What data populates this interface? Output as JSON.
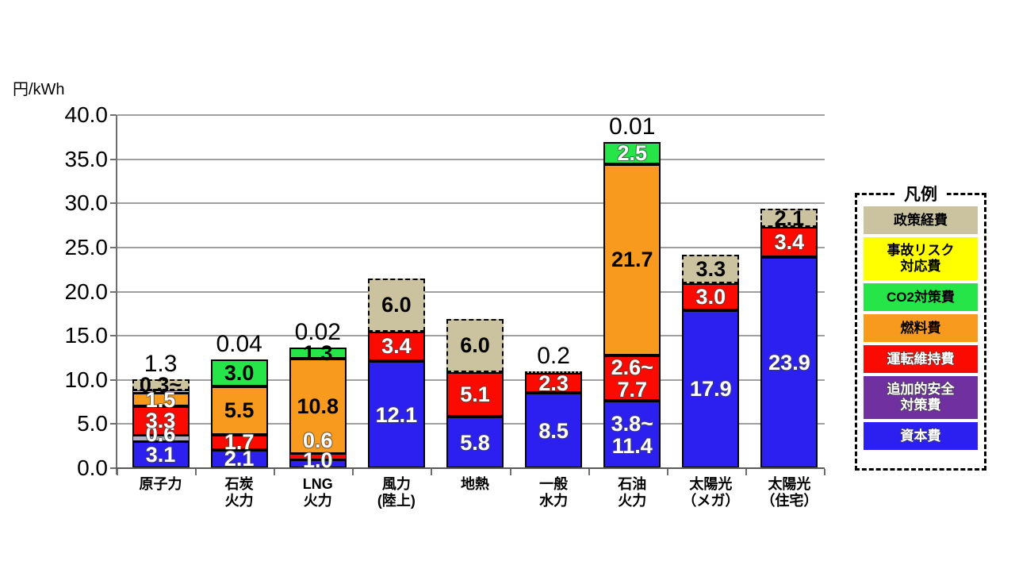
{
  "chart_data": {
    "type": "bar",
    "stacked": true,
    "unit_label": "円/kWh",
    "ylim": [
      0,
      40
    ],
    "y_ticks": [
      "40.0",
      "35.0",
      "30.0",
      "25.0",
      "20.0",
      "15.0",
      "10.0",
      "5.0",
      "0.0"
    ],
    "grid": true,
    "colors": {
      "capital": "#2B20F0",
      "safety": "#7030A0",
      "safety_light": "#B5B2C4",
      "om": "#FA0A00",
      "fuel": "#F79A1E",
      "co2": "#25E549",
      "accident": "#FFFF00",
      "policy": "#CBC29F"
    },
    "categories": [
      "原子力",
      "石炭火力",
      "LNG火力",
      "風力(陸上)",
      "地熱",
      "一般水力",
      "石油火力",
      "太陽光（メガ）",
      "太陽光（住宅）"
    ],
    "bars": [
      {
        "category_lines": [
          "原子力"
        ],
        "above_label": "1.3",
        "segments": [
          {
            "name": "資本費",
            "color": "capital",
            "value": 3.1,
            "label": "3.1",
            "text": "white"
          },
          {
            "name": "追加的安全対策費",
            "color": "safety_light",
            "value": 0.6,
            "label": "0.6",
            "text": "white",
            "ldy": -5
          },
          {
            "name": "運転維持費",
            "color": "om",
            "value": 3.3,
            "label": "3.3",
            "text": "white"
          },
          {
            "name": "燃料費",
            "color": "fuel",
            "value": 1.5,
            "label": "1.5",
            "text": "white"
          },
          {
            "name": "事故リスク対応費",
            "color": "accident",
            "value": 0.3,
            "label": "",
            "text": "black"
          },
          {
            "name": "政策経費",
            "color": "policy",
            "value": 1.3,
            "label": "0.3~",
            "text": "black",
            "dashed": true
          }
        ]
      },
      {
        "category_lines": [
          "石炭",
          "火力"
        ],
        "above_label": "0.04",
        "segments": [
          {
            "name": "資本費",
            "color": "capital",
            "value": 2.1,
            "label": "2.1",
            "text": "white"
          },
          {
            "name": "運転維持費",
            "color": "om",
            "value": 1.7,
            "label": "1.7",
            "text": "white"
          },
          {
            "name": "燃料費",
            "color": "fuel",
            "value": 5.5,
            "label": "5.5",
            "text": "black"
          },
          {
            "name": "CO2対策費",
            "color": "co2",
            "value": 3.0,
            "label": "3.0",
            "text": "black"
          }
        ]
      },
      {
        "category_lines": [
          "LNG",
          "火力"
        ],
        "above_label": "0.02",
        "segments": [
          {
            "name": "資本費",
            "color": "capital",
            "value": 1.0,
            "label": "1.0",
            "text": "white",
            "ldy": -4
          },
          {
            "name": "運転維持費",
            "color": "om",
            "value": 0.6,
            "label": "0.6",
            "text": "white",
            "ldy": -21
          },
          {
            "name": "燃料費",
            "color": "fuel",
            "value": 10.8,
            "label": "10.8",
            "text": "black"
          },
          {
            "name": "CO2対策費",
            "color": "co2",
            "value": 1.3,
            "label": "1.3",
            "text": "black"
          }
        ]
      },
      {
        "category_lines": [
          "風力",
          "(陸上)"
        ],
        "above_label": "",
        "segments": [
          {
            "name": "資本費",
            "color": "capital",
            "value": 12.1,
            "label": "12.1",
            "text": "white"
          },
          {
            "name": "運転維持費",
            "color": "om",
            "value": 3.4,
            "label": "3.4",
            "text": "white"
          },
          {
            "name": "政策経費",
            "color": "policy",
            "value": 6.0,
            "label": "6.0",
            "text": "black",
            "dashed": true
          }
        ]
      },
      {
        "category_lines": [
          "地熱"
        ],
        "above_label": "",
        "segments": [
          {
            "name": "資本費",
            "color": "capital",
            "value": 5.8,
            "label": "5.8",
            "text": "white"
          },
          {
            "name": "運転維持費",
            "color": "om",
            "value": 5.1,
            "label": "5.1",
            "text": "white"
          },
          {
            "name": "政策経費",
            "color": "policy",
            "value": 6.0,
            "label": "6.0",
            "text": "black",
            "dashed": true
          }
        ]
      },
      {
        "category_lines": [
          "一般",
          "水力"
        ],
        "above_label": "0.2",
        "segments": [
          {
            "name": "資本費",
            "color": "capital",
            "value": 8.5,
            "label": "8.5",
            "text": "white"
          },
          {
            "name": "運転維持費",
            "color": "om",
            "value": 2.3,
            "label": "2.3",
            "text": "white"
          },
          {
            "name": "政策経費",
            "color": "policy",
            "value": 0.2,
            "label": "",
            "text": "black",
            "dashed": true
          }
        ]
      },
      {
        "category_lines": [
          "石油",
          "火力"
        ],
        "above_label": "0.01",
        "segments": [
          {
            "name": "資本費",
            "color": "capital",
            "value_min": 3.8,
            "value_max": 11.4,
            "draw": 7.6,
            "label_lines": [
              "3.8~",
              "11.4"
            ],
            "text": "white"
          },
          {
            "name": "運転維持費",
            "color": "om",
            "value_min": 2.6,
            "value_max": 7.7,
            "draw": 5.15,
            "label_lines": [
              "2.6~",
              "7.7"
            ],
            "text": "white"
          },
          {
            "name": "燃料費",
            "color": "fuel",
            "value": 21.7,
            "label": "21.7",
            "text": "black"
          },
          {
            "name": "CO2対策費",
            "color": "co2",
            "value": 2.5,
            "label": "2.5",
            "text": "white"
          }
        ]
      },
      {
        "category_lines": [
          "太陽光",
          "（メガ）"
        ],
        "above_label": "",
        "segments": [
          {
            "name": "資本費",
            "color": "capital",
            "value": 17.9,
            "label": "17.9",
            "text": "white"
          },
          {
            "name": "運転維持費",
            "color": "om",
            "value": 3.0,
            "label": "3.0",
            "text": "white"
          },
          {
            "name": "政策経費",
            "color": "policy",
            "value": 3.3,
            "label": "3.3",
            "text": "black",
            "dashed": true
          }
        ]
      },
      {
        "category_lines": [
          "太陽光",
          "（住宅）"
        ],
        "above_label": "",
        "segments": [
          {
            "name": "資本費",
            "color": "capital",
            "value": 23.9,
            "label": "23.9",
            "text": "white"
          },
          {
            "name": "運転維持費",
            "color": "om",
            "value": 3.4,
            "label": "3.4",
            "text": "white"
          },
          {
            "name": "政策経費",
            "color": "policy",
            "value": 2.1,
            "label": "2.1",
            "text": "black",
            "dashed": true
          }
        ]
      }
    ],
    "legend": {
      "title": "凡例",
      "items": [
        {
          "label": "政策経費",
          "lines": [
            "政策経費"
          ],
          "color": "#CBC29F",
          "text_color": "black"
        },
        {
          "label": "事故リスク対応費",
          "lines": [
            "事故リスク",
            "対応費"
          ],
          "color": "#FFFF00",
          "text_color": "black"
        },
        {
          "label": "CO2対策費",
          "lines": [
            "CO2対策費"
          ],
          "color": "#25E549",
          "text_color": "black"
        },
        {
          "label": "燃料費",
          "lines": [
            "燃料費"
          ],
          "color": "#F79A1E",
          "text_color": "black"
        },
        {
          "label": "運転維持費",
          "lines": [
            "運転維持費"
          ],
          "color": "#FA0A00",
          "text_color": "white"
        },
        {
          "label": "追加的安全対策費",
          "lines": [
            "追加的安全",
            "対策費"
          ],
          "color": "#7030A0",
          "text_color": "white"
        },
        {
          "label": "資本費",
          "lines": [
            "資本費"
          ],
          "color": "#2B20F0",
          "text_color": "white"
        }
      ]
    }
  }
}
